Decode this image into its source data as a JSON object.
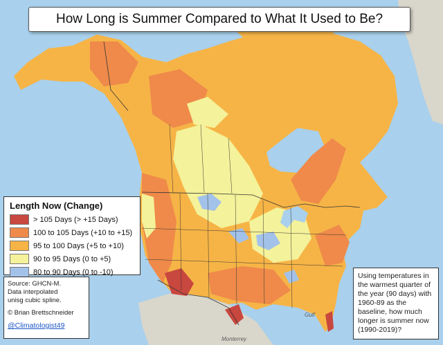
{
  "title": "How Long is Summer Compared to What It Used to Be?",
  "legend": {
    "title": "Length Now (Change)",
    "items": [
      {
        "label": "> 105 Days (> +15 Days)",
        "color": "#c8473e"
      },
      {
        "label": "100 to 105 Days (+10 to +15)",
        "color": "#ef8a4a"
      },
      {
        "label": "95 to 100 Days (+5 to +10)",
        "color": "#f6b446"
      },
      {
        "label": "90 to 95 Days (0 to +5)",
        "color": "#f4f29a"
      },
      {
        "label": "80 to 90 Days (0 to -10)",
        "color": "#a3c2ea"
      }
    ]
  },
  "source": {
    "line1": "Source: GHCN-M.",
    "line2": "Data interpolated",
    "line3": "unisg cubic spline.",
    "credit": "© Brian Brettschneider",
    "handle": "@Climatologist49"
  },
  "note": "Using temperatures in the warmest quarter of the year (90 days) with 1960-89 as the baseline, how  much longer is summer now (1990-2019)?",
  "map_labels": {
    "gulf": "Gulf",
    "monterrey": "Monterrey"
  },
  "colors": {
    "ocean": "#a9d0ec",
    "land_outside": "#d9d6cc",
    "red": "#c8473e",
    "orange": "#ef8a4a",
    "gold": "#f6b446",
    "yellow": "#f4f29a",
    "blue": "#a3c2ea"
  }
}
